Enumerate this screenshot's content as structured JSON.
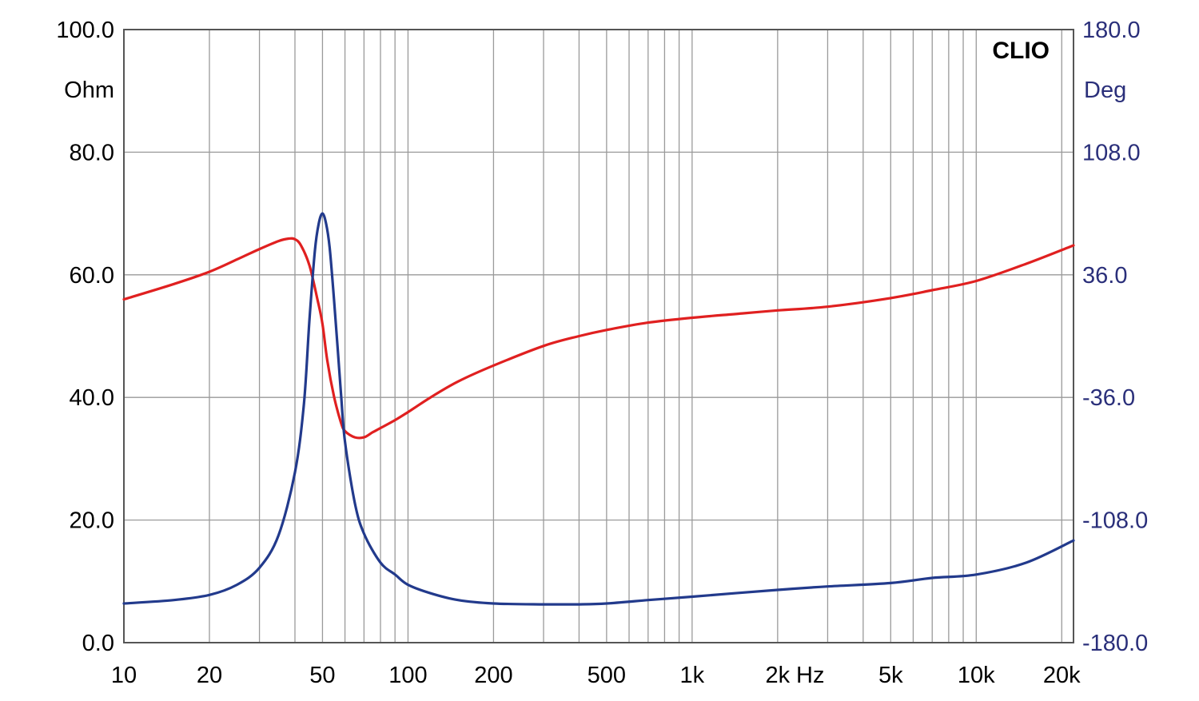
{
  "chart_data": {
    "type": "line",
    "brand": "CLIO",
    "x_scale": "log",
    "xlim": [
      10,
      22000
    ],
    "x_tick_values": [
      10,
      20,
      50,
      100,
      200,
      500,
      1000,
      2000,
      5000,
      10000,
      20000
    ],
    "x_tick_labels": [
      "10",
      "20",
      "50",
      "100",
      "200",
      "500",
      "1k",
      "2k",
      "5k",
      "10k",
      "20k"
    ],
    "x_unit": "Hz",
    "y_left": {
      "unit": "Ohm",
      "lim": [
        0,
        100
      ],
      "tick_labels": [
        "0.0",
        "20.0",
        "40.0",
        "60.0",
        "80.0",
        "100.0"
      ],
      "color": "#000000"
    },
    "y_right": {
      "unit": "Deg",
      "lim": [
        -180,
        180
      ],
      "tick_labels": [
        "-180.0",
        "-108.0",
        "-36.0",
        "36.0",
        "108.0",
        "180.0"
      ],
      "color": "#2a2f7a"
    },
    "grid": true,
    "series": [
      {
        "axis": "left",
        "color": "#e02020",
        "x": [
          10,
          15,
          20,
          25,
          30,
          35,
          38,
          40,
          42,
          45,
          48,
          50,
          52,
          55,
          58,
          60,
          65,
          70,
          75,
          80,
          90,
          100,
          120,
          150,
          200,
          300,
          400,
          500,
          700,
          1000,
          1500,
          2000,
          3000,
          5000,
          7000,
          10000,
          15000,
          22000
        ],
        "y": [
          56,
          58.5,
          60.5,
          62.5,
          64.2,
          65.5,
          65.9,
          65.8,
          64.8,
          61.5,
          56,
          52,
          46,
          40,
          36,
          34.5,
          33.5,
          33.5,
          34.3,
          35,
          36.3,
          37.6,
          40,
          42.6,
          45.2,
          48.4,
          50,
          51,
          52.2,
          53,
          53.7,
          54.2,
          54.8,
          56.2,
          57.5,
          59,
          61.8,
          64.8
        ]
      },
      {
        "axis": "right",
        "color": "#223a8c",
        "x": [
          10,
          15,
          20,
          25,
          30,
          35,
          40,
          43,
          45,
          47,
          48.5,
          50,
          51.5,
          53,
          55,
          58,
          60,
          65,
          70,
          80,
          90,
          100,
          120,
          150,
          200,
          300,
          400,
          500,
          700,
          1000,
          2000,
          3000,
          5000,
          7000,
          10000,
          15000,
          22000
        ],
        "y": [
          -157,
          -155,
          -152,
          -146,
          -136,
          -117,
          -80,
          -40,
          10,
          50,
          66,
          72,
          66,
          52,
          20,
          -32,
          -62,
          -98,
          -116,
          -133,
          -140,
          -146,
          -151,
          -155,
          -157,
          -157.5,
          -157.5,
          -157,
          -155,
          -153,
          -149,
          -147,
          -145,
          -142,
          -140,
          -133,
          -120
        ]
      }
    ]
  }
}
